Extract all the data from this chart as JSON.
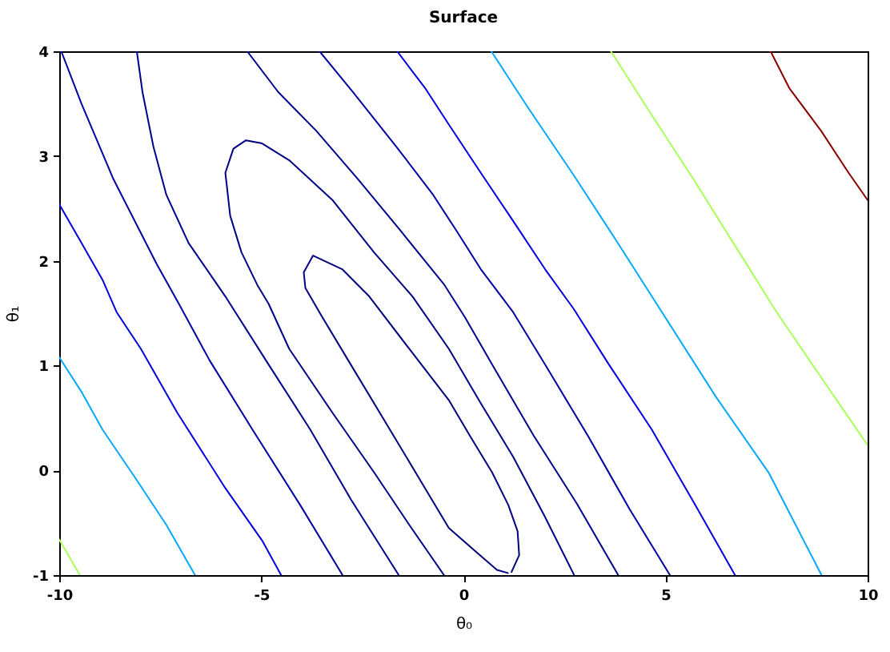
{
  "chart_data": {
    "type": "line",
    "title": "Surface",
    "xlabel": "θ₀",
    "ylabel": "θ₁",
    "xlim": [
      -10,
      10
    ],
    "ylim": [
      -1,
      4
    ],
    "xticks": [
      -10,
      -5,
      0,
      5,
      10
    ],
    "yticks": [
      -1,
      0,
      1,
      2,
      3,
      4
    ],
    "grid": false,
    "series": [
      {
        "color": "#000080",
        "x": [
          1.19,
          1.38,
          1.34,
          1.11,
          0.71,
          0.16,
          -0.36,
          -1.34,
          -2.33,
          -3.0,
          -3.72,
          -3.95,
          -3.91,
          -3.52,
          -2.85,
          -1.82,
          -0.95,
          -0.36,
          0.32,
          0.83,
          1.1
        ],
        "values": [
          -0.97,
          -0.81,
          -0.58,
          -0.33,
          -0.02,
          0.33,
          0.67,
          1.16,
          1.66,
          1.92,
          2.05,
          1.89,
          1.74,
          1.48,
          1.05,
          0.39,
          -0.17,
          -0.55,
          -0.78,
          -0.95,
          -0.98
        ]
      },
      {
        "color": "#000086",
        "x": [
          -0.48,
          -1.34,
          -2.21,
          -3.24,
          -4.31,
          -4.82,
          -5.1,
          -5.49,
          -5.77,
          -5.89,
          -5.69,
          -5.38,
          -4.98,
          -4.31,
          -3.24,
          -2.21,
          -1.26,
          -0.36,
          0.43,
          1.23,
          2.0,
          2.74
        ],
        "values": [
          -1,
          -0.52,
          -0.02,
          0.55,
          1.16,
          1.59,
          1.77,
          2.08,
          2.43,
          2.84,
          3.07,
          3.15,
          3.12,
          2.96,
          2.58,
          2.08,
          1.66,
          1.16,
          0.64,
          0.13,
          -0.43,
          -1
        ]
      },
      {
        "color": "#00008e",
        "x": [
          -8.08,
          -7.94,
          -7.67,
          -7.35,
          -6.8,
          -5.89,
          -4.82,
          -3.79,
          -2.78,
          -1.6
        ],
        "values": [
          4,
          3.61,
          3.09,
          2.63,
          2.17,
          1.66,
          1.01,
          0.39,
          -0.28,
          -1
        ]
      },
      {
        "color": "#00008f",
        "x": [
          -5.35,
          -4.58,
          -3.64,
          -2.61,
          -1.54,
          -0.47,
          0.04,
          0.71,
          1.74,
          2.81,
          3.83
        ],
        "values": [
          4,
          3.61,
          3.24,
          2.78,
          2.28,
          1.77,
          1.46,
          1.01,
          0.33,
          -0.32,
          -1
        ]
      },
      {
        "color": "#0000a4",
        "x": [
          -9.95,
          -9.45,
          -8.66,
          -7.59,
          -7.04,
          -6.28,
          -5.22,
          -4.04,
          -2.99
        ],
        "values": [
          4,
          3.5,
          2.78,
          1.97,
          1.59,
          1.05,
          0.39,
          -0.33,
          -1
        ]
      },
      {
        "color": "#0000a5",
        "x": [
          -3.56,
          -2.73,
          -1.66,
          -0.75,
          -0.16,
          0.43,
          1.23,
          2.02,
          3.08,
          4.11,
          5.11
        ],
        "values": [
          4,
          3.61,
          3.09,
          2.63,
          2.28,
          1.92,
          1.51,
          1.01,
          0.33,
          -0.37,
          -1
        ]
      },
      {
        "color": "#0000dc",
        "x": [
          -10,
          -9.45,
          -8.93,
          -8.58,
          -7.98,
          -7.08,
          -5.89,
          -4.98,
          -4.51
        ],
        "values": [
          2.54,
          2.17,
          1.82,
          1.51,
          1.16,
          0.55,
          -0.17,
          -0.67,
          -1
        ]
      },
      {
        "color": "#0000dd",
        "x": [
          -1.64,
          -0.95,
          -0.36,
          0.43,
          1.23,
          2.02,
          2.73,
          3.6,
          4.66,
          5.72,
          6.72
        ],
        "values": [
          4,
          3.65,
          3.3,
          2.84,
          2.38,
          1.92,
          1.54,
          1.01,
          0.39,
          -0.32,
          -1
        ]
      },
      {
        "color": "#00a8ff",
        "x": [
          -10,
          -9.45,
          -8.93,
          -8.14,
          -7.35,
          -6.64
        ],
        "values": [
          1.08,
          0.75,
          0.39,
          -0.06,
          -0.52,
          -1
        ]
      },
      {
        "color": "#00a9ff",
        "x": [
          0.69,
          1.62,
          2.69,
          3.72,
          4.78,
          6.25,
          7.55,
          8.86
        ],
        "values": [
          4,
          3.45,
          2.84,
          2.23,
          1.59,
          0.7,
          -0.02,
          -1
        ]
      },
      {
        "color": "#a8ff58",
        "x": [
          -10,
          -9.49
        ],
        "values": [
          -0.66,
          -1
        ]
      },
      {
        "color": "#a9ff58",
        "x": [
          3.65,
          4.66,
          5.69,
          6.76,
          7.75,
          8.74,
          10
        ],
        "values": [
          4,
          3.39,
          2.78,
          2.12,
          1.51,
          0.95,
          0.24
        ]
      },
      {
        "color": "#880000",
        "x": [
          7.6,
          8.06,
          8.85,
          9.53,
          10
        ],
        "values": [
          4,
          3.65,
          3.24,
          2.84,
          2.58
        ]
      }
    ]
  }
}
